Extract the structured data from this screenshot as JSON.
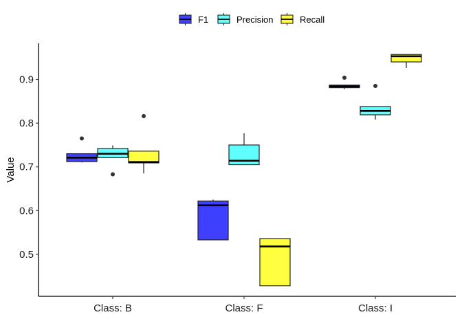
{
  "chart_data": {
    "type": "boxplot",
    "title": "",
    "xlabel": "",
    "ylabel": "Value",
    "ylim": [
      0.4,
      0.98
    ],
    "yticks": [
      0.5,
      0.6,
      0.7,
      0.8,
      0.9
    ],
    "ytick_labels": [
      "0.5",
      "0.6",
      "0.7",
      "0.8",
      "0.9"
    ],
    "categories": [
      "Class: B",
      "Class: F",
      "Class: I"
    ],
    "legend_position": "top",
    "grid": false,
    "series": [
      {
        "name": "F1",
        "color": "#3f3fff",
        "boxes": [
          {
            "category": "Class: B",
            "whisker_low": 0.71,
            "q1": 0.712,
            "median": 0.721,
            "q3": 0.73,
            "whisker_high": 0.73,
            "outliers": [
              0.765
            ]
          },
          {
            "category": "Class: F",
            "whisker_low": 0.533,
            "q1": 0.533,
            "median": 0.612,
            "q3": 0.622,
            "whisker_high": 0.625,
            "outliers": []
          },
          {
            "category": "Class: I",
            "whisker_low": 0.878,
            "q1": 0.881,
            "median": 0.884,
            "q3": 0.887,
            "whisker_high": 0.888,
            "outliers": [
              0.904
            ]
          }
        ]
      },
      {
        "name": "Precision",
        "color": "#5fffff",
        "boxes": [
          {
            "category": "Class: B",
            "whisker_low": 0.72,
            "q1": 0.721,
            "median": 0.73,
            "q3": 0.742,
            "whisker_high": 0.749,
            "outliers": [
              0.683
            ]
          },
          {
            "category": "Class: F",
            "whisker_low": 0.705,
            "q1": 0.705,
            "median": 0.714,
            "q3": 0.75,
            "whisker_high": 0.777,
            "outliers": []
          },
          {
            "category": "Class: I",
            "whisker_low": 0.808,
            "q1": 0.819,
            "median": 0.828,
            "q3": 0.838,
            "whisker_high": 0.838,
            "outliers": [
              0.885
            ]
          }
        ]
      },
      {
        "name": "Recall",
        "color": "#ffff3f",
        "boxes": [
          {
            "category": "Class: B",
            "whisker_low": 0.685,
            "q1": 0.709,
            "median": 0.711,
            "q3": 0.736,
            "whisker_high": 0.736,
            "outliers": [
              0.816
            ]
          },
          {
            "category": "Class: F",
            "whisker_low": 0.428,
            "q1": 0.428,
            "median": 0.518,
            "q3": 0.536,
            "whisker_high": 0.536,
            "outliers": []
          },
          {
            "category": "Class: I",
            "whisker_low": 0.926,
            "q1": 0.94,
            "median": 0.953,
            "q3": 0.957,
            "whisker_high": 0.957,
            "outliers": []
          }
        ]
      }
    ]
  }
}
